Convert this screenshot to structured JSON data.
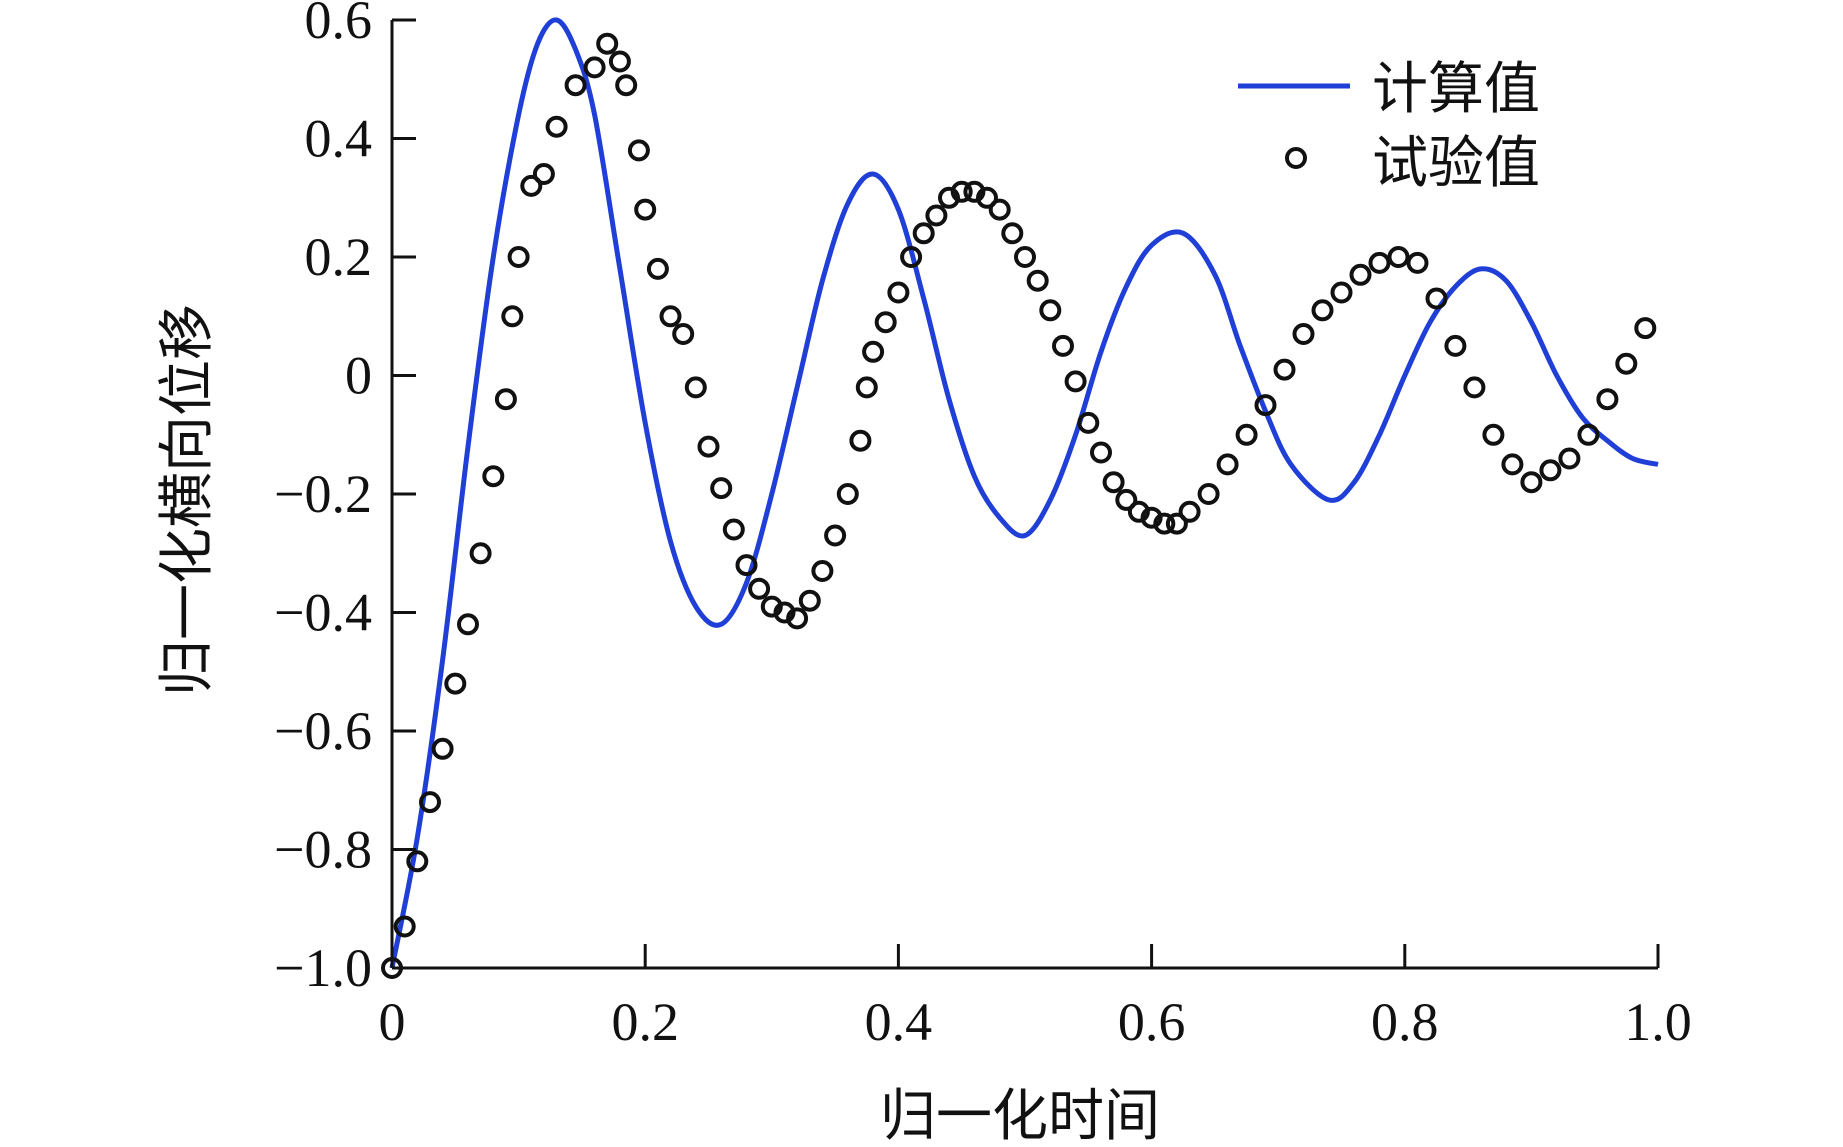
{
  "chart_data": {
    "type": "line",
    "title": "",
    "xlabel": "归一化时间",
    "ylabel": "归一化横向位移",
    "xlim": [
      0,
      1.0
    ],
    "ylim": [
      -1.0,
      0.6
    ],
    "grid": false,
    "legend_position": "top-right",
    "x_ticks": [
      "0",
      "0.2",
      "0.4",
      "0.6",
      "0.8",
      "1.0"
    ],
    "y_ticks": [
      "−1.0",
      "−0.8",
      "−0.6",
      "−0.4",
      "−0.2",
      "0",
      "0.2",
      "0.4",
      "0.6"
    ],
    "colors": {
      "computed": "#1f3fd6",
      "experimental": "#111111",
      "axis": "#111111"
    },
    "series": [
      {
        "name": "计算值",
        "kind": "line",
        "x": [
          0,
          0.02,
          0.04,
          0.06,
          0.08,
          0.1,
          0.115,
          0.13,
          0.145,
          0.16,
          0.18,
          0.2,
          0.22,
          0.24,
          0.26,
          0.28,
          0.3,
          0.32,
          0.34,
          0.36,
          0.38,
          0.4,
          0.42,
          0.44,
          0.46,
          0.48,
          0.5,
          0.52,
          0.54,
          0.56,
          0.58,
          0.6,
          0.625,
          0.65,
          0.67,
          0.69,
          0.71,
          0.74,
          0.76,
          0.78,
          0.8,
          0.82,
          0.84,
          0.86,
          0.88,
          0.9,
          0.92,
          0.94,
          0.96,
          0.98,
          1.0
        ],
        "y": [
          -1.0,
          -0.78,
          -0.48,
          -0.12,
          0.2,
          0.44,
          0.56,
          0.6,
          0.55,
          0.44,
          0.18,
          -0.08,
          -0.28,
          -0.39,
          -0.42,
          -0.35,
          -0.2,
          -0.02,
          0.16,
          0.29,
          0.34,
          0.28,
          0.13,
          -0.04,
          -0.17,
          -0.24,
          -0.27,
          -0.21,
          -0.1,
          0.04,
          0.15,
          0.22,
          0.24,
          0.17,
          0.05,
          -0.06,
          -0.15,
          -0.21,
          -0.18,
          -0.1,
          0.0,
          0.09,
          0.15,
          0.18,
          0.16,
          0.09,
          0.0,
          -0.07,
          -0.11,
          -0.14,
          -0.15
        ]
      },
      {
        "name": "试验值",
        "kind": "scatter",
        "x": [
          0,
          0.01,
          0.02,
          0.03,
          0.04,
          0.05,
          0.06,
          0.07,
          0.08,
          0.09,
          0.095,
          0.1,
          0.11,
          0.12,
          0.13,
          0.145,
          0.16,
          0.17,
          0.18,
          0.185,
          0.195,
          0.2,
          0.21,
          0.22,
          0.23,
          0.24,
          0.25,
          0.26,
          0.27,
          0.28,
          0.29,
          0.3,
          0.31,
          0.32,
          0.33,
          0.34,
          0.35,
          0.36,
          0.37,
          0.375,
          0.38,
          0.39,
          0.4,
          0.41,
          0.42,
          0.43,
          0.44,
          0.45,
          0.46,
          0.47,
          0.48,
          0.49,
          0.5,
          0.51,
          0.52,
          0.53,
          0.54,
          0.55,
          0.56,
          0.57,
          0.58,
          0.59,
          0.6,
          0.61,
          0.62,
          0.63,
          0.645,
          0.66,
          0.675,
          0.69,
          0.705,
          0.72,
          0.735,
          0.75,
          0.765,
          0.78,
          0.795,
          0.81,
          0.825,
          0.84,
          0.855,
          0.87,
          0.885,
          0.9,
          0.915,
          0.93,
          0.945,
          0.96,
          0.975,
          0.99
        ],
        "y": [
          -1.0,
          -0.93,
          -0.82,
          -0.72,
          -0.63,
          -0.52,
          -0.42,
          -0.3,
          -0.17,
          -0.04,
          0.1,
          0.2,
          0.32,
          0.34,
          0.42,
          0.49,
          0.52,
          0.56,
          0.53,
          0.49,
          0.38,
          0.28,
          0.18,
          0.1,
          0.07,
          -0.02,
          -0.12,
          -0.19,
          -0.26,
          -0.32,
          -0.36,
          -0.39,
          -0.4,
          -0.41,
          -0.38,
          -0.33,
          -0.27,
          -0.2,
          -0.11,
          -0.02,
          0.04,
          0.09,
          0.14,
          0.2,
          0.24,
          0.27,
          0.3,
          0.31,
          0.31,
          0.3,
          0.28,
          0.24,
          0.2,
          0.16,
          0.11,
          0.05,
          -0.01,
          -0.08,
          -0.13,
          -0.18,
          -0.21,
          -0.23,
          -0.24,
          -0.25,
          -0.25,
          -0.23,
          -0.2,
          -0.15,
          -0.1,
          -0.05,
          0.01,
          0.07,
          0.11,
          0.14,
          0.17,
          0.19,
          0.2,
          0.19,
          0.13,
          0.05,
          -0.02,
          -0.1,
          -0.15,
          -0.18,
          -0.16,
          -0.14,
          -0.1,
          -0.04,
          0.02,
          0.08
        ]
      }
    ]
  }
}
